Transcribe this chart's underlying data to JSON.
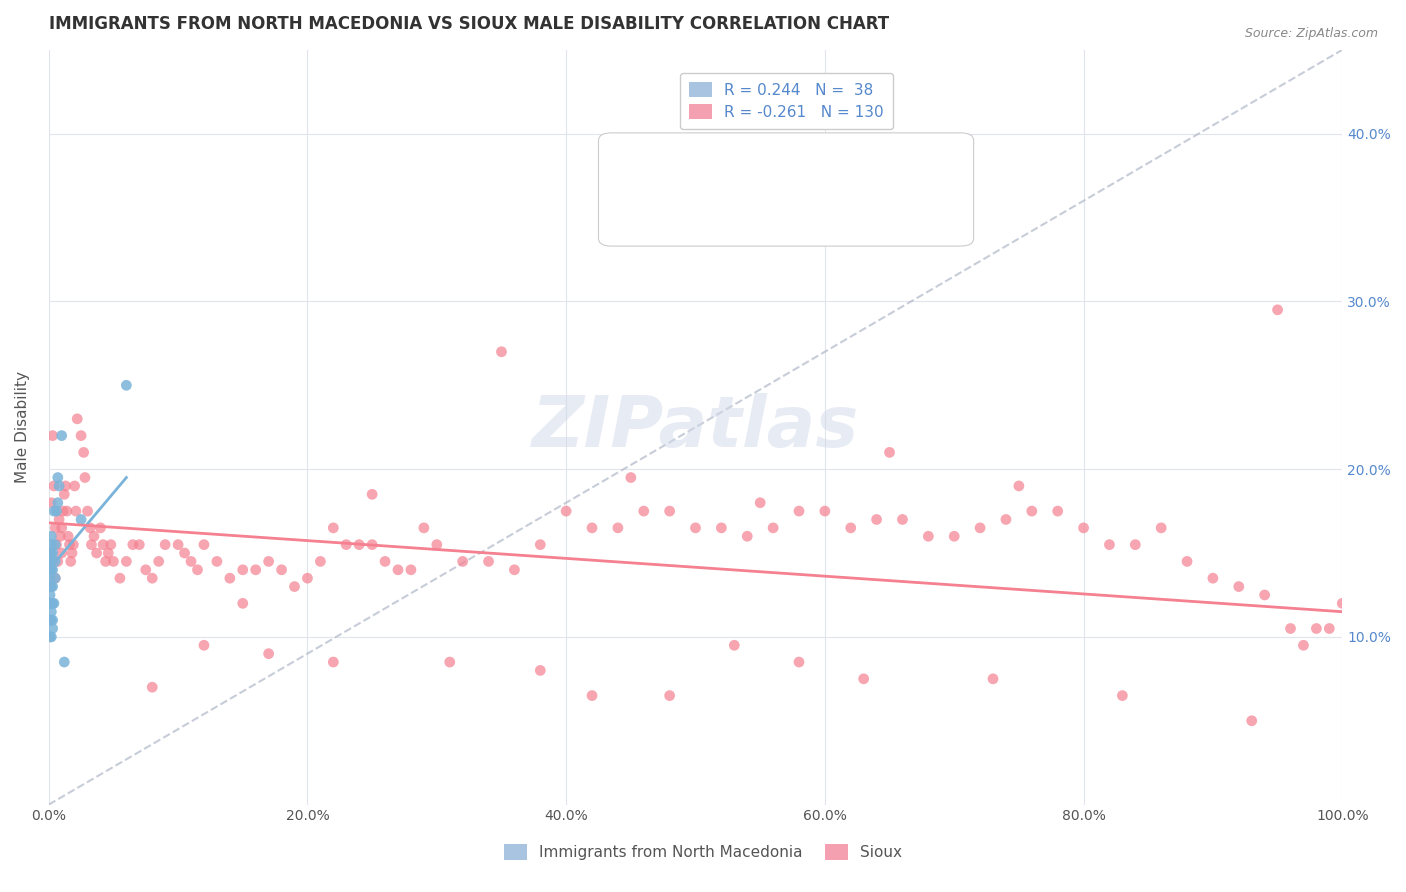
{
  "title": "IMMIGRANTS FROM NORTH MACEDONIA VS SIOUX MALE DISABILITY CORRELATION CHART",
  "source": "Source: ZipAtlas.com",
  "xlabel_ticks": [
    "0.0%",
    "20.0%",
    "40.0%",
    "60.0%",
    "80.0%",
    "100.0%"
  ],
  "ylabel_ticks": [
    "10.0%",
    "20.0%",
    "30.0%",
    "40.0%"
  ],
  "xlim": [
    0,
    1.0
  ],
  "ylim": [
    0,
    0.45
  ],
  "watermark": "ZIPatlas",
  "legend_items": [
    {
      "label": "R = 0.244   N =  38",
      "color": "#a8c4e0"
    },
    {
      "label": "R = -0.261   N = 130",
      "color": "#f4a0b0"
    }
  ],
  "blue_color": "#7ab3d9",
  "pink_color": "#f48090",
  "blue_line_color": "#7ab3d9",
  "pink_line_color": "#f48090",
  "dashed_line_color": "#b0b8c8",
  "grid_color": "#e0e4ec",
  "background_color": "#ffffff",
  "blue_scatter_x": [
    0.001,
    0.001,
    0.001,
    0.001,
    0.001,
    0.001,
    0.001,
    0.001,
    0.001,
    0.002,
    0.002,
    0.002,
    0.002,
    0.002,
    0.002,
    0.002,
    0.002,
    0.002,
    0.002,
    0.003,
    0.003,
    0.003,
    0.003,
    0.003,
    0.003,
    0.004,
    0.004,
    0.005,
    0.005,
    0.005,
    0.006,
    0.007,
    0.007,
    0.008,
    0.01,
    0.012,
    0.025,
    0.06
  ],
  "blue_scatter_y": [
    0.1,
    0.11,
    0.12,
    0.125,
    0.13,
    0.135,
    0.14,
    0.145,
    0.15,
    0.1,
    0.11,
    0.115,
    0.12,
    0.13,
    0.14,
    0.145,
    0.15,
    0.155,
    0.16,
    0.105,
    0.11,
    0.12,
    0.13,
    0.14,
    0.15,
    0.12,
    0.175,
    0.135,
    0.145,
    0.155,
    0.175,
    0.18,
    0.195,
    0.19,
    0.22,
    0.085,
    0.17,
    0.25
  ],
  "pink_scatter_x": [
    0.001,
    0.002,
    0.003,
    0.004,
    0.005,
    0.005,
    0.006,
    0.007,
    0.008,
    0.009,
    0.01,
    0.01,
    0.011,
    0.012,
    0.013,
    0.014,
    0.015,
    0.016,
    0.017,
    0.018,
    0.019,
    0.02,
    0.021,
    0.022,
    0.025,
    0.027,
    0.028,
    0.03,
    0.032,
    0.033,
    0.035,
    0.037,
    0.04,
    0.042,
    0.044,
    0.046,
    0.048,
    0.05,
    0.055,
    0.06,
    0.065,
    0.07,
    0.075,
    0.08,
    0.085,
    0.09,
    0.1,
    0.105,
    0.11,
    0.115,
    0.12,
    0.13,
    0.14,
    0.15,
    0.16,
    0.17,
    0.18,
    0.19,
    0.2,
    0.21,
    0.22,
    0.23,
    0.24,
    0.25,
    0.26,
    0.27,
    0.28,
    0.29,
    0.3,
    0.32,
    0.34,
    0.36,
    0.38,
    0.4,
    0.42,
    0.44,
    0.46,
    0.48,
    0.5,
    0.52,
    0.54,
    0.56,
    0.58,
    0.6,
    0.62,
    0.64,
    0.66,
    0.68,
    0.7,
    0.72,
    0.74,
    0.76,
    0.78,
    0.8,
    0.82,
    0.84,
    0.86,
    0.88,
    0.9,
    0.92,
    0.94,
    0.95,
    0.96,
    0.97,
    0.98,
    0.99,
    1.0,
    0.65,
    0.35,
    0.55,
    0.45,
    0.75,
    0.25,
    0.15,
    0.08,
    0.12,
    0.31,
    0.42,
    0.53,
    0.63,
    0.73,
    0.83,
    0.93,
    0.17,
    0.22,
    0.38,
    0.48,
    0.58
  ],
  "pink_scatter_y": [
    0.15,
    0.18,
    0.22,
    0.19,
    0.165,
    0.135,
    0.155,
    0.145,
    0.17,
    0.16,
    0.15,
    0.165,
    0.175,
    0.185,
    0.19,
    0.175,
    0.16,
    0.155,
    0.145,
    0.15,
    0.155,
    0.19,
    0.175,
    0.23,
    0.22,
    0.21,
    0.195,
    0.175,
    0.165,
    0.155,
    0.16,
    0.15,
    0.165,
    0.155,
    0.145,
    0.15,
    0.155,
    0.145,
    0.135,
    0.145,
    0.155,
    0.155,
    0.14,
    0.135,
    0.145,
    0.155,
    0.155,
    0.15,
    0.145,
    0.14,
    0.155,
    0.145,
    0.135,
    0.14,
    0.14,
    0.145,
    0.14,
    0.13,
    0.135,
    0.145,
    0.165,
    0.155,
    0.155,
    0.155,
    0.145,
    0.14,
    0.14,
    0.165,
    0.155,
    0.145,
    0.145,
    0.14,
    0.155,
    0.175,
    0.165,
    0.165,
    0.175,
    0.175,
    0.165,
    0.165,
    0.16,
    0.165,
    0.175,
    0.175,
    0.165,
    0.17,
    0.17,
    0.16,
    0.16,
    0.165,
    0.17,
    0.175,
    0.175,
    0.165,
    0.155,
    0.155,
    0.165,
    0.145,
    0.135,
    0.13,
    0.125,
    0.295,
    0.105,
    0.095,
    0.105,
    0.105,
    0.12,
    0.21,
    0.27,
    0.18,
    0.195,
    0.19,
    0.185,
    0.12,
    0.07,
    0.095,
    0.085,
    0.065,
    0.095,
    0.075,
    0.075,
    0.065,
    0.05,
    0.09,
    0.085,
    0.08,
    0.065,
    0.085
  ],
  "blue_line_x": [
    0.0,
    0.06
  ],
  "blue_line_y": [
    0.14,
    0.195
  ],
  "pink_line_x": [
    0.0,
    1.0
  ],
  "pink_line_y": [
    0.168,
    0.115
  ],
  "dashed_line_x": [
    0.0,
    1.0
  ],
  "dashed_line_y": [
    0.0,
    0.45
  ]
}
